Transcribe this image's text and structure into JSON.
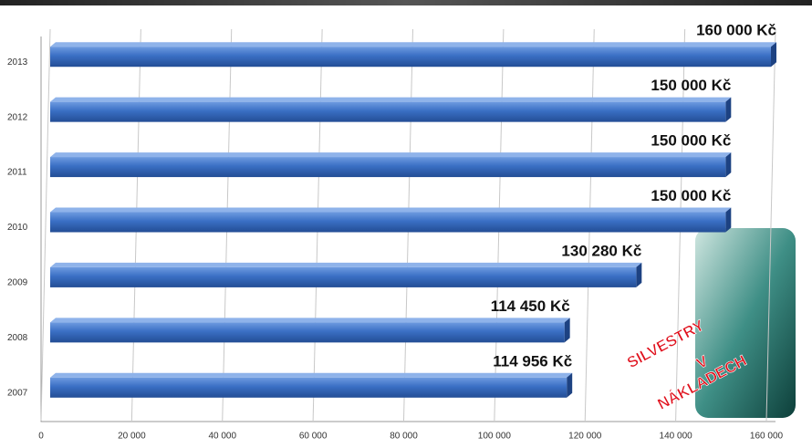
{
  "chart_data": {
    "type": "bar",
    "orientation": "horizontal",
    "categories": [
      "2007",
      "2008",
      "2009",
      "2010",
      "2011",
      "2012",
      "2013"
    ],
    "values": [
      114956,
      114450,
      130280,
      150000,
      150000,
      150000,
      160000
    ],
    "value_labels": [
      "114 956 Kč",
      "114 450 Kč",
      "130 280 Kč",
      "150 000 Kč",
      "150 000 Kč",
      "150 000 Kč",
      "160 000 Kč"
    ],
    "color": "#3a6fc4",
    "xlim": [
      0,
      160000
    ],
    "xticks": [
      0,
      {
        "value": 20000,
        "label": "20 000"
      },
      {
        "value": 40000,
        "label": "40 000"
      },
      {
        "value": 60000,
        "label": "60 000"
      },
      {
        "value": 80000,
        "label": "80 000"
      },
      {
        "value": 100000,
        "label": "100 000"
      },
      {
        "value": 120000,
        "label": "120 000"
      },
      {
        "value": 140000,
        "label": "140 000"
      },
      {
        "value": 160000,
        "label": "160 000"
      }
    ],
    "grid": true,
    "annotations": [
      "SILVESTRY",
      "V",
      "NÁKLADECH"
    ]
  }
}
